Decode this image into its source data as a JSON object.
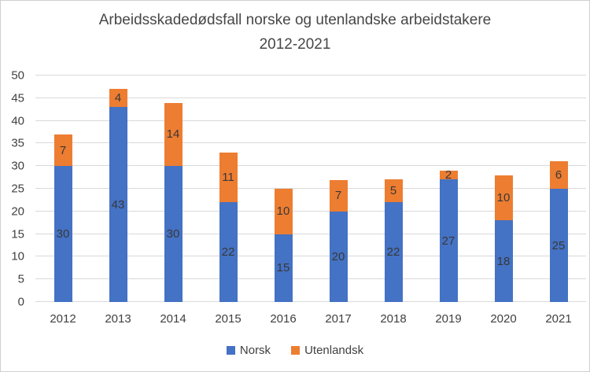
{
  "window": {
    "background": "#ffffff",
    "border_color": "#cfcfcf"
  },
  "chart_data": {
    "type": "bar",
    "stacked": true,
    "title": "Arbeidsskadedødsfall norske og utenlandske arbeidstakere 2012-2021",
    "title_line1": "Arbeidsskadedødsfall norske og utenlandske arbeidstakere",
    "title_line2": "2012-2021",
    "categories": [
      "2012",
      "2013",
      "2014",
      "2015",
      "2016",
      "2017",
      "2018",
      "2019",
      "2020",
      "2021"
    ],
    "series": [
      {
        "name": "Norsk",
        "color": "#4472C4",
        "values": [
          30,
          43,
          30,
          22,
          15,
          20,
          22,
          27,
          18,
          25
        ]
      },
      {
        "name": "Utenlandsk",
        "color": "#ED7D31",
        "values": [
          7,
          4,
          14,
          11,
          10,
          7,
          5,
          2,
          10,
          6
        ]
      }
    ],
    "totals": [
      37,
      47,
      44,
      33,
      25,
      27,
      27,
      29,
      28,
      31
    ],
    "ylim": [
      0,
      50
    ],
    "ytick_step": 5,
    "yticks": [
      0,
      5,
      10,
      15,
      20,
      25,
      30,
      35,
      40,
      45,
      50
    ],
    "xlabel": "",
    "ylabel": "",
    "grid": true,
    "gridline_color": "#d9d9d9",
    "data_labels": true,
    "data_label_color": "#383838",
    "axis_text_color": "#404040",
    "title_color": "#474747",
    "legend_position": "bottom"
  }
}
